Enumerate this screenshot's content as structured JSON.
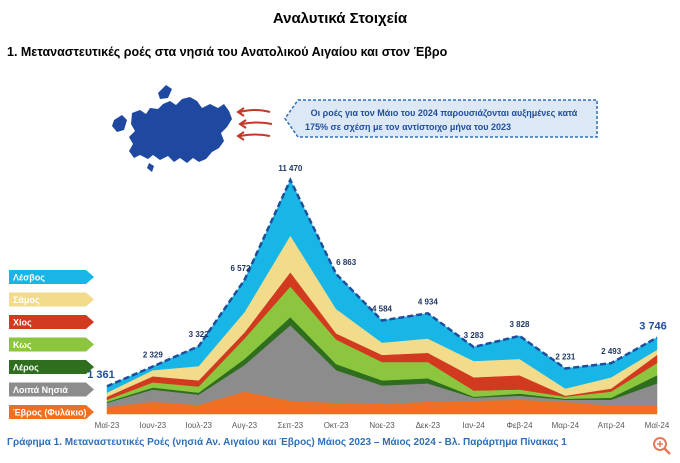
{
  "header": {
    "title": "Αναλυτικά Στοιχεία",
    "section": "1.  Μεταναστευτικές ροές στα νησιά του Ανατολικού Αιγαίου και στον  Έβρο"
  },
  "callout": {
    "text_line1": "Οι ροές για τον Μάιο του 2024 παρουσιάζονται αυξημένες κατά",
    "text_line2": "175% σε σχέση με τον αντίστοιχο μήνα του 2023"
  },
  "caption": "Γράφημα 1. Μεταναστευτικές Ροές (νησιά Αν. Αιγαίου και Έβρος) Μάιος 2023 – Μάιος 2024 - Βλ. Παράρτημα  Πίνακας 1",
  "colors": {
    "lesvos": "#17b6e6",
    "samos": "#f2db8b",
    "chios": "#d13a1f",
    "kos": "#8cc63f",
    "leros": "#2f6e1f",
    "loipa": "#8c8c8c",
    "evros": "#ee6f22",
    "total_line": "#1f4e9c",
    "caption": "#2e6fb6"
  },
  "chart_data": {
    "type": "area",
    "stacked": true,
    "title": "",
    "xlabel": "",
    "ylabel": "",
    "ylim": [
      0,
      12000
    ],
    "categories": [
      "Μαϊ-23",
      "Ιουν-23",
      "Ιουλ-23",
      "Αυγ-23",
      "Σεπ-23",
      "Οκτ-23",
      "Νοε-23",
      "Δεκ-23",
      "Ιαν-24",
      "Φεβ-24",
      "Μαρ-24",
      "Απρ-24",
      "Μαϊ-24"
    ],
    "series": [
      {
        "name": "Έβρος (Φυλάκιο)",
        "color": "#ee6f22",
        "values": [
          350,
          600,
          450,
          1100,
          650,
          550,
          500,
          600,
          650,
          700,
          600,
          400,
          400
        ]
      },
      {
        "name": "Λοιπά Νησιά",
        "color": "#8c8c8c",
        "values": [
          200,
          600,
          500,
          1300,
          3700,
          1600,
          900,
          900,
          150,
          200,
          100,
          300,
          1100
        ]
      },
      {
        "name": "Λέρος",
        "color": "#2f6e1f",
        "values": [
          50,
          100,
          100,
          300,
          400,
          300,
          250,
          250,
          50,
          100,
          50,
          100,
          400
        ]
      },
      {
        "name": "Κως",
        "color": "#8cc63f",
        "values": [
          100,
          250,
          300,
          1000,
          1500,
          1200,
          900,
          800,
          300,
          200,
          100,
          300,
          600
        ]
      },
      {
        "name": "Χίος",
        "color": "#d13a1f",
        "values": [
          150,
          300,
          300,
          300,
          700,
          300,
          350,
          450,
          650,
          700,
          50,
          150,
          400
        ]
      },
      {
        "name": "Σάμος",
        "color": "#f2db8b",
        "values": [
          200,
          300,
          700,
          1000,
          1800,
          1200,
          600,
          700,
          800,
          800,
          350,
          550,
          250
        ]
      },
      {
        "name": "Λέσβος",
        "color": "#17b6e6",
        "values": [
          311,
          179,
          972,
          1572,
          2720,
          1713,
          1084,
          1234,
          683,
          1128,
          981,
          693,
          596
        ]
      }
    ],
    "totals": [
      1361,
      2329,
      3322,
      6572,
      11470,
      6863,
      4584,
      4934,
      3283,
      3828,
      2231,
      2493,
      3746
    ],
    "total_labels": [
      "1 361",
      "2 329",
      "3 322",
      "6 572",
      "11 470",
      "6 863",
      "4 584",
      "4 934",
      "3 283",
      "3 828",
      "2 231",
      "2 493",
      "3 746"
    ],
    "legend_order": [
      "Λέσβος",
      "Σάμος",
      "Χίος",
      "Κως",
      "Λέρος",
      "Λοιπά Νησιά",
      "Έβρος (Φυλάκιο)"
    ]
  }
}
